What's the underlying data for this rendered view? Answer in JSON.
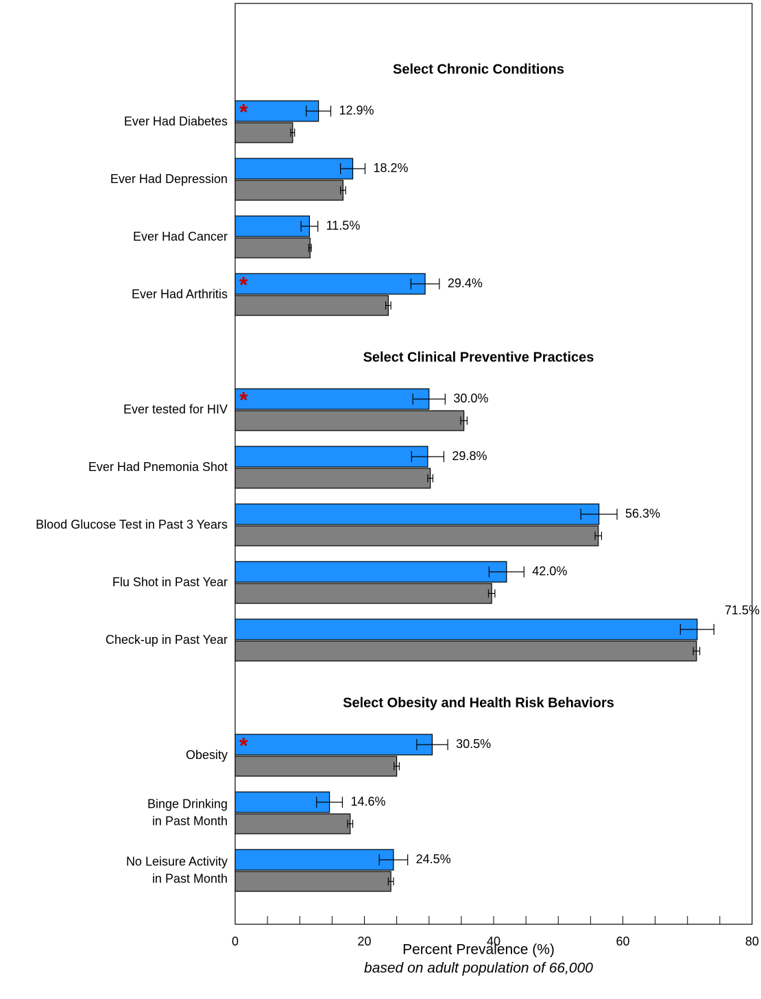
{
  "chart_data": {
    "type": "bar",
    "orientation": "horizontal",
    "xlabel": "Percent Prevalence (%)",
    "xlabel_note": "based on adult population of 66,000",
    "groups": [
      {
        "title": "Select Chronic Conditions",
        "categories": [
          "Ever Had Diabetes",
          "Ever Had Depression",
          "Ever Had Cancer",
          "Ever Had Arthritis"
        ]
      },
      {
        "title": "Select Clinical Preventive Practices",
        "categories": [
          "Ever tested for HIV",
          "Ever Had Pnemonia Shot",
          "Blood Glucose Test in Past 3 Years",
          "Flu Shot in Past Year",
          "Check-up in Past Year"
        ]
      },
      {
        "title": "Select Obesity and Health Risk Behaviors",
        "categories": [
          "Obesity",
          "Binge Drinking\nin Past Month",
          "No Leisure Activity\nin Past Month"
        ]
      }
    ],
    "series": [
      {
        "color": "#1e90ff",
        "values": [
          12.9,
          18.2,
          11.5,
          29.4,
          30.0,
          29.8,
          56.3,
          42.0,
          71.5,
          30.5,
          14.6,
          24.5
        ],
        "value_labels": [
          "12.9%",
          "18.2%",
          "11.5%",
          "29.4%",
          "30.0%",
          "29.8%",
          "56.3%",
          "42.0%",
          "71.5%",
          "30.5%",
          "14.6%",
          "24.5%"
        ],
        "errors": [
          1.9,
          1.9,
          1.3,
          2.2,
          2.5,
          2.5,
          2.8,
          2.7,
          2.6,
          2.4,
          2.0,
          2.2
        ]
      },
      {
        "color": "#808080",
        "values": [
          8.9,
          16.7,
          11.6,
          23.7,
          35.4,
          30.2,
          56.2,
          39.7,
          71.4,
          25.0,
          17.8,
          24.1
        ],
        "errors": [
          0.3,
          0.4,
          0.2,
          0.4,
          0.5,
          0.4,
          0.5,
          0.5,
          0.5,
          0.4,
          0.4,
          0.4
        ]
      }
    ],
    "significance_marks": [
      "*",
      null,
      null,
      "*",
      "*",
      null,
      null,
      null,
      null,
      "*",
      null,
      null
    ],
    "significance_color": "#c00000",
    "xlim": [
      0,
      80
    ],
    "xticks": [
      0,
      20,
      40,
      60,
      80
    ],
    "xminor_ticks": [
      5,
      10,
      15,
      25,
      30,
      35,
      45,
      50,
      55,
      65,
      70,
      75
    ]
  }
}
